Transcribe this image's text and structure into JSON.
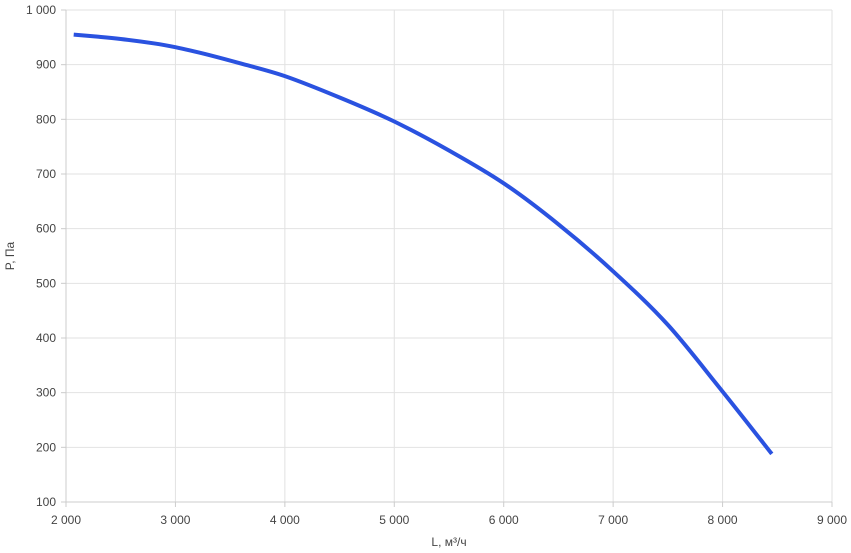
{
  "chart_data": {
    "type": "line",
    "xlabel": "L, м³/ч",
    "ylabel": "P, Па",
    "xlim": [
      2000,
      9000
    ],
    "ylim": [
      100,
      1000
    ],
    "x_ticks": [
      2000,
      3000,
      4000,
      5000,
      6000,
      7000,
      8000,
      9000
    ],
    "x_tick_labels": [
      "2 000",
      "3 000",
      "4 000",
      "5 000",
      "6 000",
      "7 000",
      "8 000",
      "9 000"
    ],
    "y_ticks": [
      100,
      200,
      300,
      400,
      500,
      600,
      700,
      800,
      900,
      1000
    ],
    "y_tick_labels": [
      "100",
      "200",
      "300",
      "400",
      "500",
      "600",
      "700",
      "800",
      "900",
      "1 000"
    ],
    "grid": true,
    "series": [
      {
        "color": "#2a52e0",
        "x": [
          2070,
          2300,
          2500,
          2800,
          3000,
          3300,
          3600,
          4000,
          4500,
          5000,
          5500,
          6000,
          6500,
          7000,
          7500,
          8000,
          8450
        ],
        "y": [
          955,
          951,
          947,
          939,
          932,
          918,
          902,
          879,
          840,
          796,
          743,
          683,
          608,
          522,
          424,
          302,
          188
        ]
      }
    ]
  }
}
